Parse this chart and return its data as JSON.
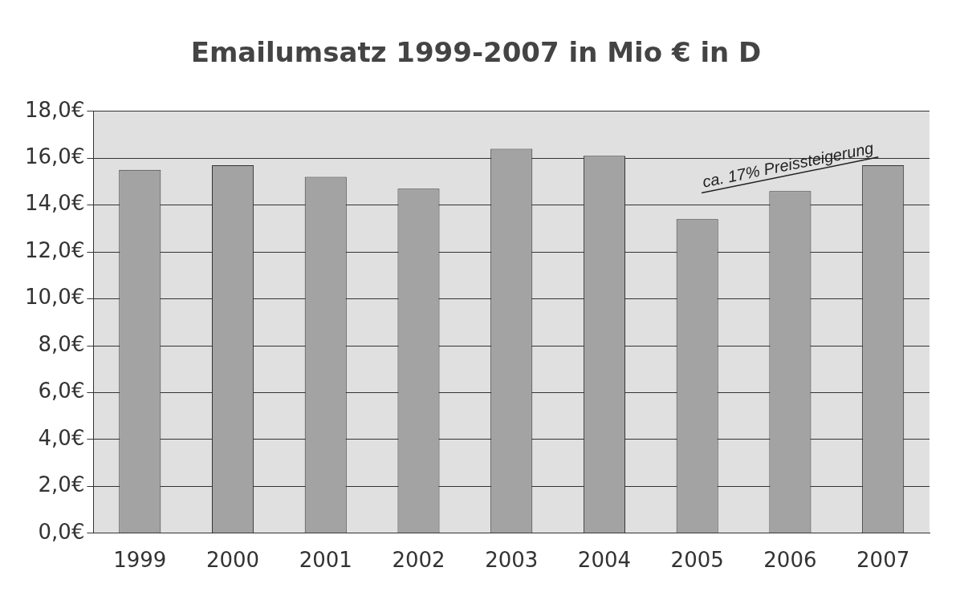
{
  "chart_data": {
    "type": "bar",
    "title": "Emailumsatz 1999-2007 in Mio € in D",
    "categories": [
      "1999",
      "2000",
      "2001",
      "2002",
      "2003",
      "2004",
      "2005",
      "2006",
      "2007"
    ],
    "values": [
      15.5,
      15.7,
      15.2,
      14.7,
      16.4,
      16.1,
      13.4,
      14.6,
      15.7
    ],
    "color": "#a3a3a3",
    "ylim": [
      0,
      18
    ],
    "yticks": [
      {
        "value": 0,
        "label": "0,0€"
      },
      {
        "value": 2,
        "label": "2,0€"
      },
      {
        "value": 4,
        "label": "4,0€"
      },
      {
        "value": 6,
        "label": "6,0€"
      },
      {
        "value": 8,
        "label": "8,0€"
      },
      {
        "value": 10,
        "label": "10,0€"
      },
      {
        "value": 12,
        "label": "12,0€"
      },
      {
        "value": 14,
        "label": "14,0€"
      },
      {
        "value": 16,
        "label": "16,0€"
      },
      {
        "value": 18,
        "label": "18,0€"
      }
    ],
    "grid": "y",
    "legend": false,
    "annotations": [
      "ca. 17% Preissteigerung"
    ]
  }
}
